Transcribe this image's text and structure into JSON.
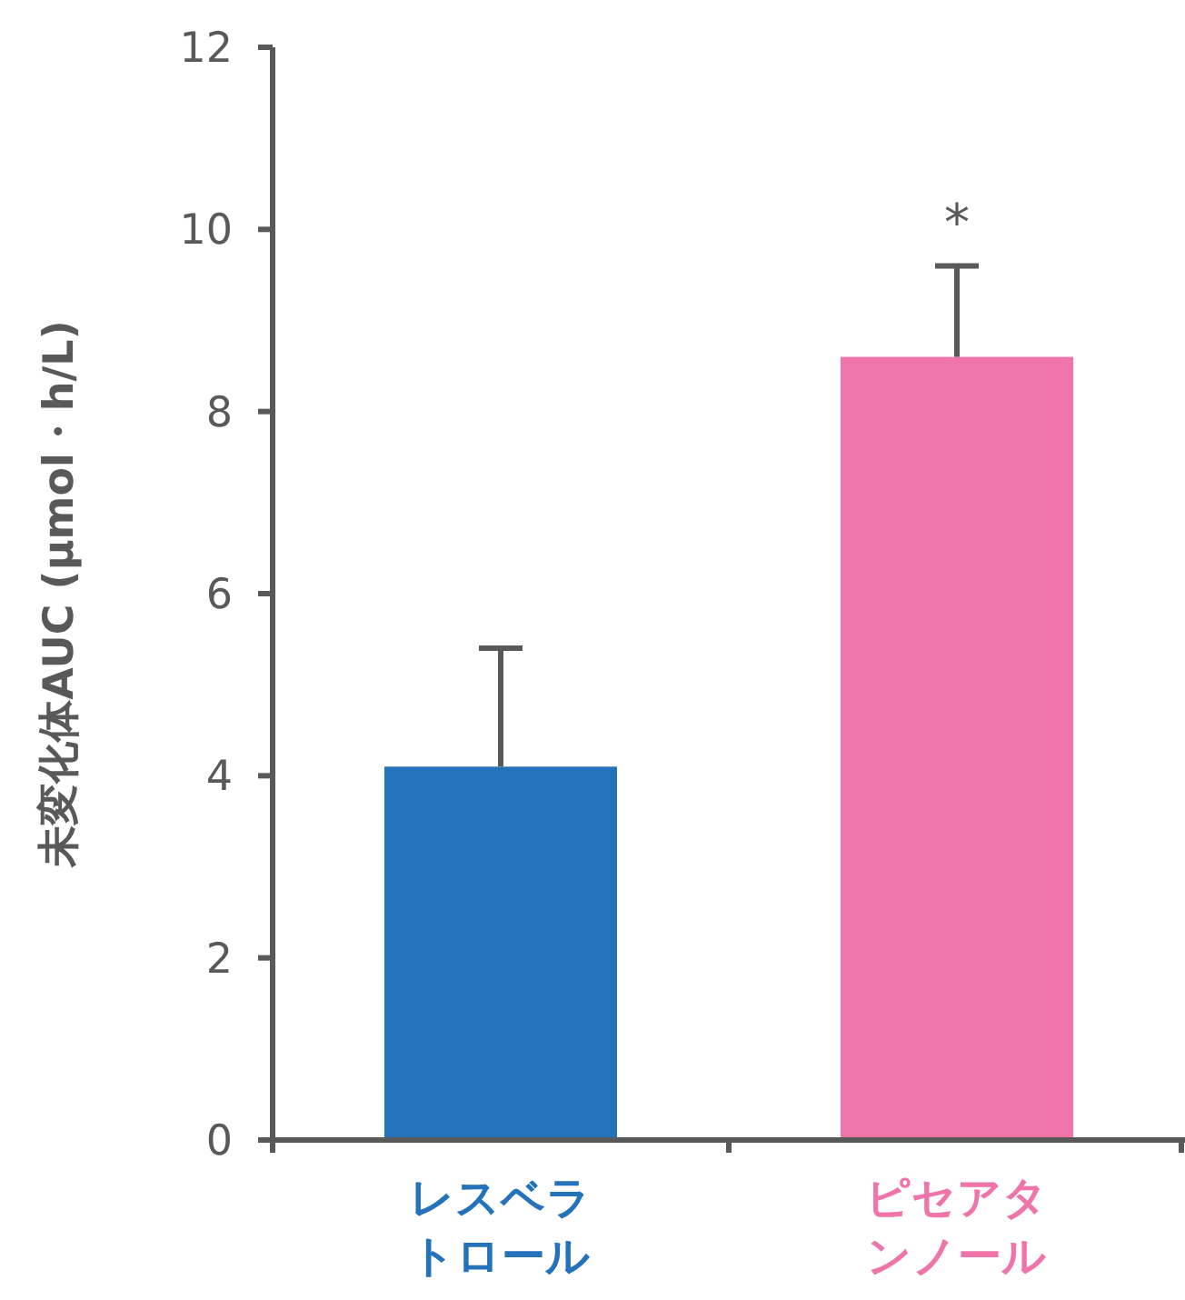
{
  "chart_data": {
    "type": "bar",
    "ylabel": "未変化体AUC (μmol・h/L)",
    "categories": [
      "レスベラトロール",
      "ピセアタンノール"
    ],
    "values": [
      4.1,
      8.6
    ],
    "colors": [
      "#2372ba",
      "#ef74a9"
    ],
    "errors": [
      [
        4.1,
        5.4
      ],
      [
        8.6,
        9.6
      ]
    ],
    "ylim": [
      0,
      12
    ],
    "yticks": [
      0,
      2,
      4,
      6,
      8,
      10,
      12
    ],
    "annotations": [
      {
        "text": "*",
        "x": "ピセアタンノール",
        "y": 9.6
      }
    ]
  }
}
